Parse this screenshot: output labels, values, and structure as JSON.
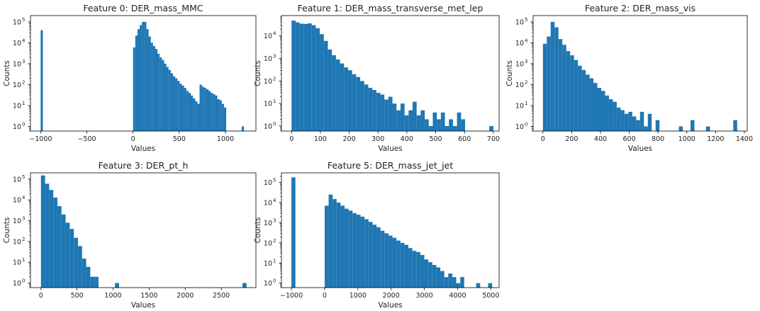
{
  "chart_data": [
    {
      "type": "bar",
      "title": "Feature 0: DER_mass_MMC",
      "xlabel": "Values",
      "ylabel": "Counts",
      "yscale": "log",
      "xlim": [
        -1110,
        1330
      ],
      "ylim": [
        0.6,
        200000
      ],
      "xticks": [
        -1000,
        -500,
        0,
        500,
        1000
      ],
      "yticks_exp": [
        0,
        1,
        2,
        3,
        4,
        5
      ],
      "bin_width": 24,
      "color": "#1f77b4",
      "bins": [
        [
          -1000,
          40000
        ],
        [
          0,
          6000
        ],
        [
          24,
          22000
        ],
        [
          48,
          45000
        ],
        [
          72,
          70000
        ],
        [
          96,
          100000
        ],
        [
          120,
          100000
        ],
        [
          144,
          45000
        ],
        [
          168,
          20000
        ],
        [
          192,
          10000
        ],
        [
          216,
          7000
        ],
        [
          240,
          5000
        ],
        [
          264,
          3000
        ],
        [
          288,
          2000
        ],
        [
          312,
          1500
        ],
        [
          336,
          1000
        ],
        [
          360,
          700
        ],
        [
          384,
          500
        ],
        [
          408,
          350
        ],
        [
          432,
          250
        ],
        [
          456,
          200
        ],
        [
          480,
          150
        ],
        [
          504,
          110
        ],
        [
          528,
          90
        ],
        [
          552,
          70
        ],
        [
          576,
          50
        ],
        [
          600,
          40
        ],
        [
          624,
          30
        ],
        [
          648,
          22
        ],
        [
          672,
          16
        ],
        [
          696,
          12
        ],
        [
          720,
          100
        ],
        [
          744,
          80
        ],
        [
          768,
          70
        ],
        [
          792,
          60
        ],
        [
          816,
          50
        ],
        [
          840,
          40
        ],
        [
          864,
          35
        ],
        [
          888,
          30
        ],
        [
          912,
          20
        ],
        [
          936,
          18
        ],
        [
          960,
          12
        ],
        [
          984,
          8
        ],
        [
          1176,
          1
        ]
      ]
    },
    {
      "type": "bar",
      "title": "Feature 1: DER_mass_transverse_met_lep",
      "xlabel": "Values",
      "ylabel": "Counts",
      "yscale": "log",
      "xlim": [
        -35,
        720
      ],
      "ylim": [
        0.6,
        80000
      ],
      "xticks": [
        0,
        100,
        200,
        300,
        400,
        500,
        600,
        700
      ],
      "yticks_exp": [
        0,
        1,
        2,
        3,
        4
      ],
      "bin_width": 14,
      "color": "#1f77b4",
      "bins": [
        [
          0,
          48000
        ],
        [
          14,
          40000
        ],
        [
          28,
          35000
        ],
        [
          42,
          34000
        ],
        [
          56,
          36000
        ],
        [
          70,
          30000
        ],
        [
          84,
          22000
        ],
        [
          98,
          12000
        ],
        [
          112,
          6000
        ],
        [
          126,
          2500
        ],
        [
          140,
          1400
        ],
        [
          154,
          900
        ],
        [
          168,
          600
        ],
        [
          182,
          400
        ],
        [
          196,
          300
        ],
        [
          210,
          200
        ],
        [
          224,
          150
        ],
        [
          238,
          100
        ],
        [
          252,
          70
        ],
        [
          266,
          50
        ],
        [
          280,
          40
        ],
        [
          294,
          30
        ],
        [
          308,
          25
        ],
        [
          322,
          15
        ],
        [
          336,
          20
        ],
        [
          350,
          10
        ],
        [
          364,
          5
        ],
        [
          378,
          10
        ],
        [
          392,
          3
        ],
        [
          406,
          5
        ],
        [
          420,
          12
        ],
        [
          434,
          3
        ],
        [
          448,
          5
        ],
        [
          462,
          2
        ],
        [
          476,
          1
        ],
        [
          490,
          4
        ],
        [
          504,
          2
        ],
        [
          518,
          4
        ],
        [
          532,
          1
        ],
        [
          546,
          2
        ],
        [
          560,
          1
        ],
        [
          574,
          4
        ],
        [
          588,
          2
        ],
        [
          686,
          1
        ]
      ]
    },
    {
      "type": "bar",
      "title": "Feature 2: DER_mass_vis",
      "xlabel": "Values",
      "ylabel": "Counts",
      "yscale": "log",
      "xlim": [
        -68,
        1420
      ],
      "ylim": [
        0.6,
        200000
      ],
      "xticks": [
        0,
        200,
        400,
        600,
        800,
        1000,
        1200,
        1400
      ],
      "yticks_exp": [
        0,
        1,
        2,
        3,
        4,
        5
      ],
      "bin_width": 27,
      "color": "#1f77b4",
      "bins": [
        [
          0,
          9000
        ],
        [
          27,
          20000
        ],
        [
          54,
          100000
        ],
        [
          81,
          55000
        ],
        [
          108,
          15000
        ],
        [
          135,
          8000
        ],
        [
          162,
          4000
        ],
        [
          189,
          2500
        ],
        [
          216,
          1500
        ],
        [
          243,
          800
        ],
        [
          270,
          500
        ],
        [
          297,
          300
        ],
        [
          324,
          200
        ],
        [
          351,
          120
        ],
        [
          378,
          70
        ],
        [
          405,
          50
        ],
        [
          432,
          30
        ],
        [
          459,
          20
        ],
        [
          486,
          15
        ],
        [
          513,
          8
        ],
        [
          540,
          6
        ],
        [
          567,
          4
        ],
        [
          594,
          5
        ],
        [
          621,
          3
        ],
        [
          648,
          2
        ],
        [
          675,
          5
        ],
        [
          702,
          1
        ],
        [
          729,
          4
        ],
        [
          783,
          2
        ],
        [
          945,
          1
        ],
        [
          1026,
          2
        ],
        [
          1134,
          1
        ],
        [
          1323,
          2
        ]
      ]
    },
    {
      "type": "bar",
      "title": "Feature 3: DER_pt_h",
      "xlabel": "Values",
      "ylabel": "Counts",
      "yscale": "log",
      "xlim": [
        -145,
        2980
      ],
      "ylim": [
        0.6,
        200000
      ],
      "xticks": [
        0,
        500,
        1000,
        1500,
        2000,
        2500
      ],
      "yticks_exp": [
        0,
        1,
        2,
        3,
        4,
        5
      ],
      "bin_width": 57,
      "color": "#1f77b4",
      "bins": [
        [
          0,
          150000
        ],
        [
          57,
          60000
        ],
        [
          114,
          30000
        ],
        [
          171,
          13000
        ],
        [
          228,
          5000
        ],
        [
          285,
          2000
        ],
        [
          342,
          800
        ],
        [
          399,
          400
        ],
        [
          456,
          150
        ],
        [
          513,
          60
        ],
        [
          570,
          15
        ],
        [
          627,
          6
        ],
        [
          684,
          2
        ],
        [
          741,
          2
        ],
        [
          1026,
          1
        ],
        [
          2793,
          1
        ]
      ]
    },
    {
      "type": "bar",
      "title": "Feature 5: DER_mass_jet_jet",
      "xlabel": "Values",
      "ylabel": "Counts",
      "yscale": "log",
      "xlim": [
        -1300,
        5250
      ],
      "ylim": [
        0.6,
        300000
      ],
      "xticks": [
        -1000,
        0,
        1000,
        2000,
        3000,
        4000,
        5000
      ],
      "yticks_exp": [
        0,
        1,
        2,
        3,
        4,
        5
      ],
      "bin_width": 120,
      "color": "#1f77b4",
      "bins": [
        [
          -1000,
          180000
        ],
        [
          0,
          7000
        ],
        [
          120,
          25000
        ],
        [
          240,
          15000
        ],
        [
          360,
          10000
        ],
        [
          480,
          7000
        ],
        [
          600,
          5000
        ],
        [
          720,
          4000
        ],
        [
          840,
          3000
        ],
        [
          960,
          2500
        ],
        [
          1080,
          2000
        ],
        [
          1200,
          1500
        ],
        [
          1320,
          1100
        ],
        [
          1440,
          800
        ],
        [
          1560,
          600
        ],
        [
          1680,
          400
        ],
        [
          1800,
          300
        ],
        [
          1920,
          230
        ],
        [
          2040,
          180
        ],
        [
          2160,
          130
        ],
        [
          2280,
          100
        ],
        [
          2400,
          80
        ],
        [
          2520,
          55
        ],
        [
          2640,
          40
        ],
        [
          2760,
          35
        ],
        [
          2880,
          25
        ],
        [
          3000,
          15
        ],
        [
          3120,
          11
        ],
        [
          3240,
          8
        ],
        [
          3360,
          6
        ],
        [
          3480,
          4
        ],
        [
          3600,
          2
        ],
        [
          3720,
          3
        ],
        [
          3840,
          2
        ],
        [
          3960,
          1
        ],
        [
          4080,
          2
        ],
        [
          4560,
          1
        ],
        [
          4920,
          1
        ]
      ]
    }
  ]
}
